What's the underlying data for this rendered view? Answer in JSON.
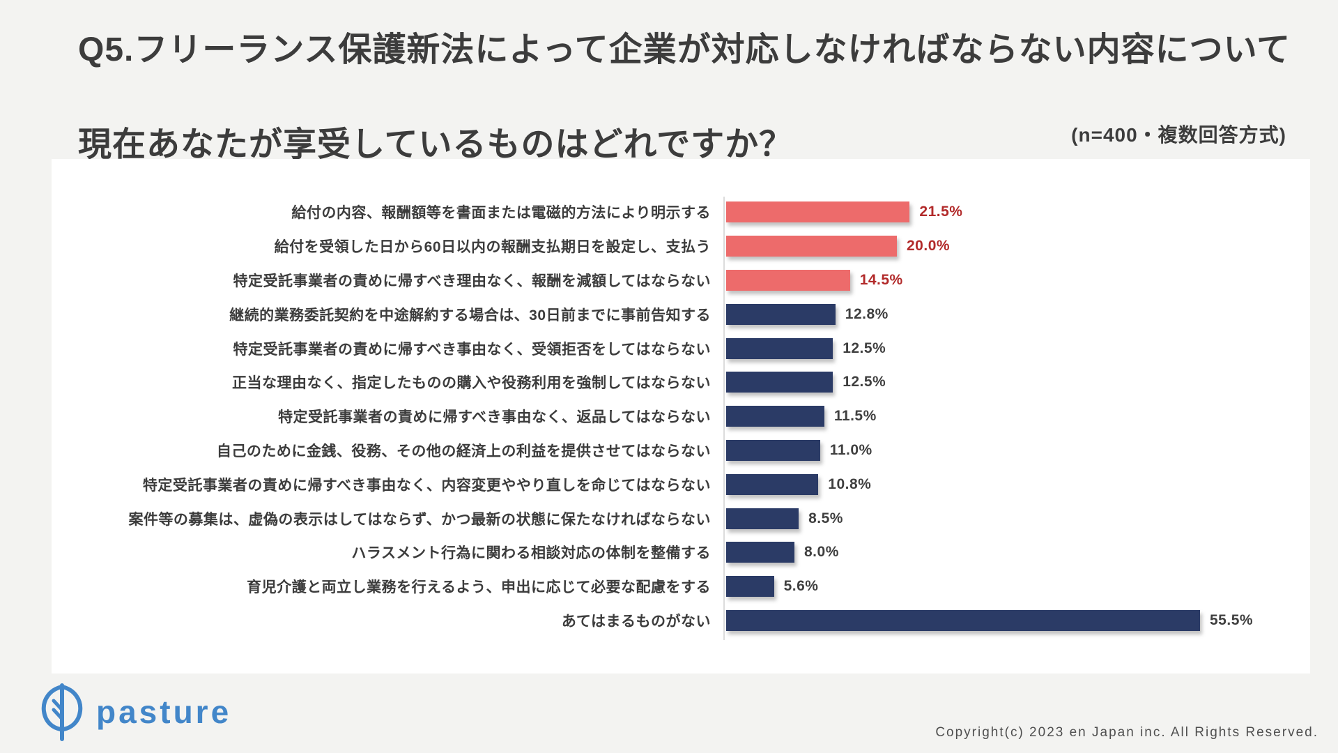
{
  "header": {
    "title_line1": "Q5.フリーランス保護新法によって企業が対応しなければならない内容について",
    "title_line2": "現在あなたが享受しているものはどれですか？",
    "sample_note": "(n=400・複数回答方式)"
  },
  "chart_data": {
    "type": "bar",
    "orientation": "horizontal",
    "categories": [
      "給付の内容、報酬額等を書面または電磁的方法により明示する",
      "給付を受領した日から60日以内の報酬支払期日を設定し、支払う",
      "特定受託事業者の責めに帰すべき理由なく、報酬を減額してはならない",
      "継続的業務委託契約を中途解約する場合は、30日前までに事前告知する",
      "特定受託事業者の責めに帰すべき事由なく、受領拒否をしてはならない",
      "正当な理由なく、指定したものの購入や役務利用を強制してはならない",
      "特定受託事業者の責めに帰すべき事由なく、返品してはならない",
      "自己のために金銭、役務、その他の経済上の利益を提供させてはならない",
      "特定受託事業者の責めに帰すべき事由なく、内容変更ややり直しを命じてはならない",
      "案件等の募集は、虚偽の表示はしてはならず、かつ最新の状態に保たなければならない",
      "ハラスメント行為に関わる相談対応の体制を整備する",
      "育児介護と両立し業務を行えるよう、申出に応じて必要な配慮をする",
      "あてはまるものがない"
    ],
    "values": [
      21.5,
      20.0,
      14.5,
      12.8,
      12.5,
      12.5,
      11.5,
      11.0,
      10.8,
      8.5,
      8.0,
      5.6,
      55.5
    ],
    "value_labels": [
      "21.5%",
      "20.0%",
      "14.5%",
      "12.8%",
      "12.5%",
      "12.5%",
      "11.5%",
      "11.0%",
      "10.8%",
      "8.5%",
      "8.0%",
      "5.6%",
      "55.5%"
    ],
    "highlighted_count": 3,
    "colors": {
      "highlight_bar": "#ED6B6B",
      "base_bar": "#2B3B66",
      "highlight_value": "#B22A2A",
      "base_value": "#3F3F3F"
    },
    "xlim": [
      0,
      60
    ],
    "grid": false,
    "legend": "none",
    "xlabel": "",
    "ylabel": ""
  },
  "footer": {
    "logo_text": "pasture",
    "logo_color": "#4286C9",
    "copyright": "Copyright(c) 2023 en Japan inc. All Rights Reserved."
  }
}
